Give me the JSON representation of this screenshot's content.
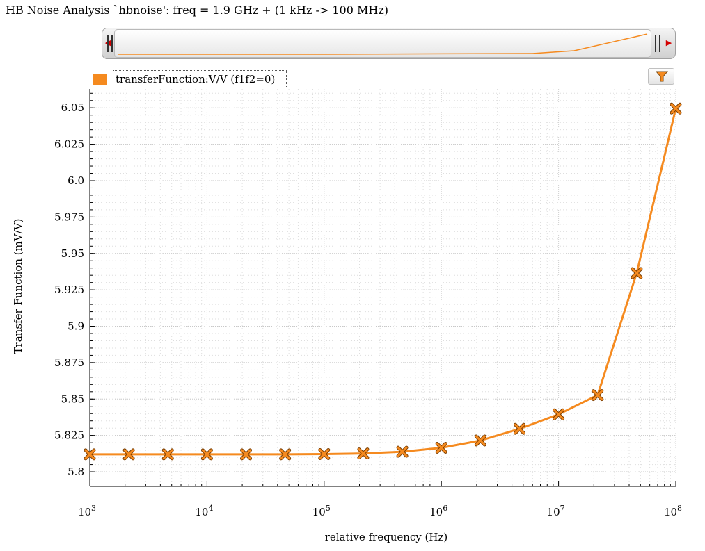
{
  "window": {
    "title": "HB Noise Analysis `hbnoise': freq = 1.9 GHz + (1 kHz -> 100 MHz)"
  },
  "navigator": {
    "left_arrow_icon": "triangle-left-icon",
    "right_arrow_icon": "triangle-right-icon"
  },
  "legend": {
    "label": "transferFunction:V/V (f1f2=0)",
    "color": "#f58a1f"
  },
  "toolbar": {
    "filter_icon": "filter-funnel-icon"
  },
  "chart_data": {
    "type": "line",
    "xscale": "log",
    "xlabel": "relative frequency (Hz)",
    "ylabel": "Transfer Function (mV/V)",
    "xlim": [
      1000,
      100000000
    ],
    "ylim": [
      5.79,
      6.063
    ],
    "y_ticks": [
      "5.8",
      "5.825",
      "5.85",
      "5.875",
      "5.9",
      "5.925",
      "5.95",
      "5.975",
      "6.0",
      "6.025",
      "6.05"
    ],
    "x_ticks": [
      {
        "base": "10",
        "exp": "3"
      },
      {
        "base": "10",
        "exp": "4"
      },
      {
        "base": "10",
        "exp": "5"
      },
      {
        "base": "10",
        "exp": "6"
      },
      {
        "base": "10",
        "exp": "7"
      },
      {
        "base": "10",
        "exp": "8"
      }
    ],
    "grid": true,
    "marker": "x",
    "series": [
      {
        "name": "transferFunction:V/V (f1f2=0)",
        "color": "#f58a1f",
        "x": [
          1000,
          2154,
          4642,
          10000,
          21544,
          46416,
          100000,
          215443,
          464159,
          1000000,
          2154435,
          4641589,
          10000000,
          21544347,
          46415888,
          100000000
        ],
        "y": [
          5.812,
          5.812,
          5.812,
          5.812,
          5.812,
          5.812,
          5.8122,
          5.8126,
          5.8138,
          5.8165,
          5.8215,
          5.8295,
          5.8395,
          5.8527,
          5.9365,
          6.0495
        ]
      }
    ]
  }
}
